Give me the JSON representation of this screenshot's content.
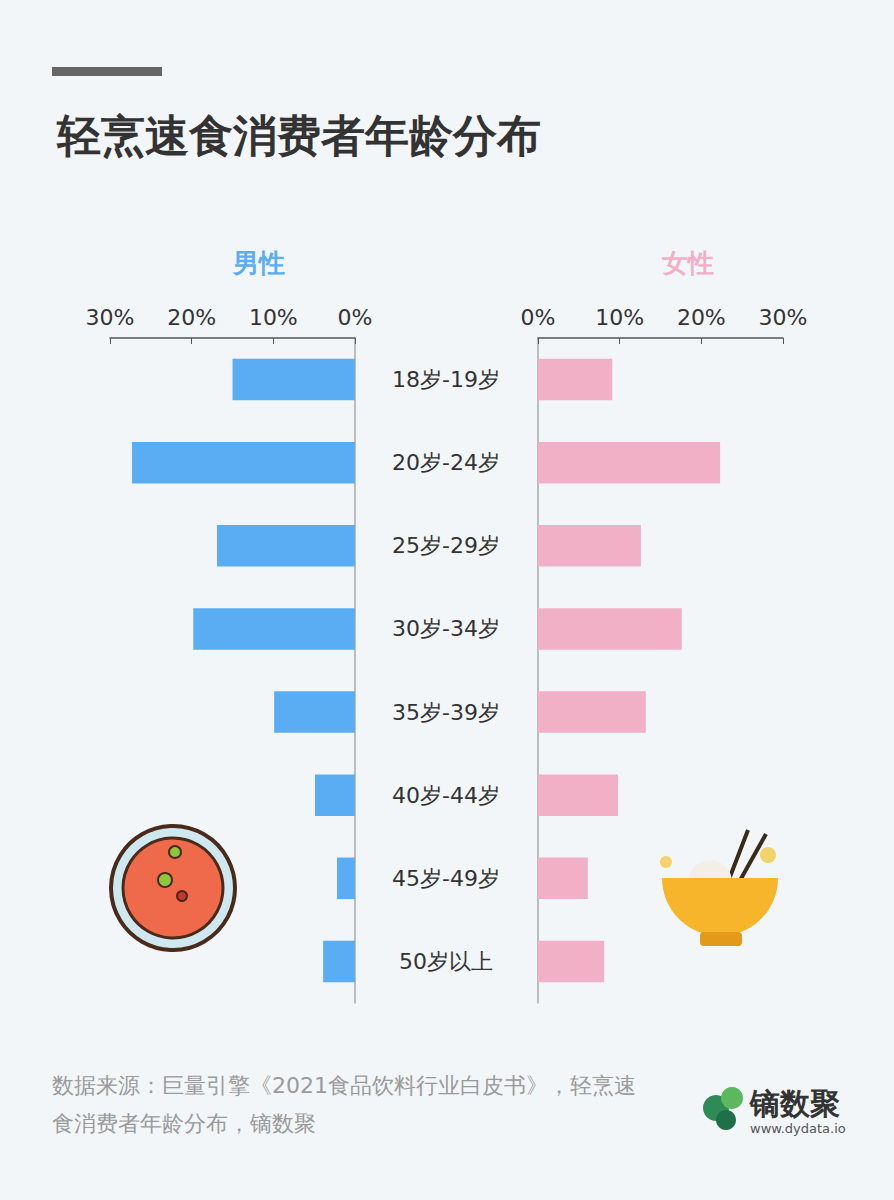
{
  "chart_data": {
    "type": "bar",
    "orientation": "horizontal",
    "title": "轻烹速食消费者年龄分布",
    "categories": [
      "18岁-19岁",
      "20岁-24岁",
      "25岁-29岁",
      "30岁-34岁",
      "35岁-39岁",
      "40岁-44岁",
      "45岁-49岁",
      "50岁以上"
    ],
    "series": [
      {
        "name": "男性",
        "color": "#5aadf2",
        "values": [
          15.0,
          27.3,
          16.9,
          19.8,
          9.9,
          4.9,
          2.2,
          3.9
        ]
      },
      {
        "name": "女性",
        "color": "#f2b0c7",
        "values": [
          9.1,
          22.3,
          12.6,
          17.6,
          13.2,
          9.8,
          6.1,
          8.1
        ]
      }
    ],
    "xlim": [
      0,
      30
    ],
    "xticks": [
      {
        "value": 0,
        "label": "0%"
      },
      {
        "value": 10,
        "label": "10%"
      },
      {
        "value": 20,
        "label": "20%"
      },
      {
        "value": 30,
        "label": "30%"
      }
    ],
    "grid": false,
    "source": "数据来源：巨量引擎《2021食品饮料行业白皮书》，轻烹速食消费者年龄分布，镝数聚",
    "logo_text": "镝数聚",
    "logo_url": "www.dydata.io"
  }
}
